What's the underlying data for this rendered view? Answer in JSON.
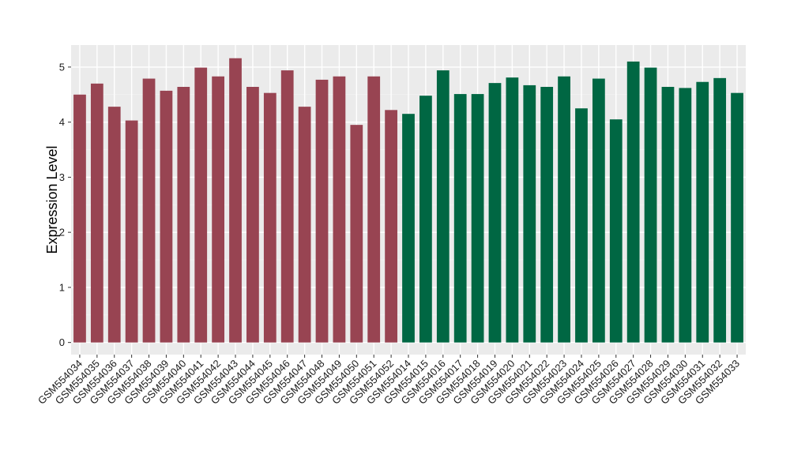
{
  "chart_data": {
    "type": "bar",
    "title": "",
    "xlabel": "",
    "ylabel": "Expression Level",
    "ylim": [
      -0.22,
      5.4
    ],
    "yticks": [
      0,
      1,
      2,
      3,
      4,
      5
    ],
    "grid": true,
    "legend": "none",
    "categories": [
      "GSM554034",
      "GSM554035",
      "GSM554036",
      "GSM554037",
      "GSM554038",
      "GSM554039",
      "GSM554040",
      "GSM554041",
      "GSM554042",
      "GSM554043",
      "GSM554044",
      "GSM554045",
      "GSM554046",
      "GSM554047",
      "GSM554048",
      "GSM554049",
      "GSM554050",
      "GSM554051",
      "GSM554052",
      "GSM554014",
      "GSM554015",
      "GSM554016",
      "GSM554017",
      "GSM554018",
      "GSM554019",
      "GSM554020",
      "GSM554021",
      "GSM554022",
      "GSM554023",
      "GSM554024",
      "GSM554025",
      "GSM554026",
      "GSM554027",
      "GSM554028",
      "GSM554029",
      "GSM554030",
      "GSM554031",
      "GSM554032",
      "GSM554033"
    ],
    "values": [
      4.5,
      4.7,
      4.28,
      4.03,
      4.79,
      4.57,
      4.64,
      4.99,
      4.83,
      5.16,
      4.64,
      4.53,
      4.94,
      4.28,
      4.77,
      4.83,
      3.95,
      4.83,
      4.22,
      4.15,
      4.48,
      4.94,
      4.51,
      4.51,
      4.71,
      4.81,
      4.67,
      4.64,
      4.83,
      4.25,
      4.79,
      4.05,
      5.1,
      4.99,
      4.64,
      4.62,
      4.73,
      4.8,
      4.53
    ],
    "group_colors": [
      "#984452",
      "#006743"
    ],
    "group_sizes": [
      19,
      20
    ]
  },
  "colors": {
    "panel_background": "#ebebeb",
    "grid_major": "#ffffff",
    "grid_minor": "#f4f4f4"
  }
}
